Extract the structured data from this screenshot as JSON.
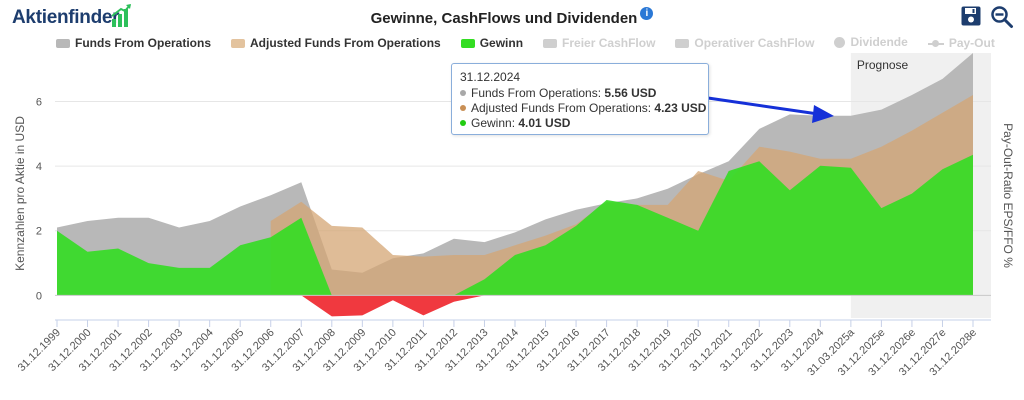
{
  "header": {
    "logo_text": "Aktienfinder",
    "title": "Gewinne, CashFlows und Dividenden",
    "info_icon": "i"
  },
  "legend": [
    {
      "label": "Funds From Operations",
      "color": "#b8b8b8",
      "shape": "rect",
      "active": true
    },
    {
      "label": "Adjusted Funds From Operations",
      "color": "#e3c39e",
      "shape": "rect",
      "active": true
    },
    {
      "label": "Gewinn",
      "color": "#33dd22",
      "shape": "rect",
      "active": true
    },
    {
      "label": "Freier CashFlow",
      "color": "#cfcfcf",
      "shape": "rect",
      "active": false
    },
    {
      "label": "Operativer CashFlow",
      "color": "#cfcfcf",
      "shape": "rect",
      "active": false
    },
    {
      "label": "Dividende",
      "color": "#cfcfcf",
      "shape": "circle",
      "active": false
    },
    {
      "label": "Pay-Out",
      "color": "#cfcfcf",
      "shape": "line-dot",
      "active": false
    }
  ],
  "tooltip": {
    "date": "31.12.2024",
    "rows": [
      {
        "label": "Funds From Operations: ",
        "value": "5.56 USD",
        "color": "#a8a8a8"
      },
      {
        "label": "Adjusted Funds From Operations: ",
        "value": "4.23 USD",
        "color": "#c98f55"
      },
      {
        "label": "Gewinn: ",
        "value": "4.01 USD",
        "color": "#22cc11"
      }
    ]
  },
  "chart_data": {
    "type": "area",
    "title": "Gewinne, CashFlows und Dividenden",
    "ylabel": "Kennzahlen pro Aktie in USD",
    "y2label": "Pay-Out-Ratio EPS/FFO %",
    "ylim": [
      -0.7,
      7.5
    ],
    "yticks": [
      0,
      2,
      4,
      6
    ],
    "grid": true,
    "legend_position": "top",
    "forecast_label": "Prognose",
    "forecast_start": "31.03.2025a",
    "categories": [
      "31.12.1999",
      "31.12.2000",
      "31.12.2001",
      "31.12.2002",
      "31.12.2003",
      "31.12.2004",
      "31.12.2005",
      "31.12.2006",
      "31.12.2007",
      "31.12.2008",
      "31.12.2009",
      "31.12.2010",
      "31.12.2011",
      "31.12.2012",
      "31.12.2013",
      "31.12.2014",
      "31.12.2015",
      "31.12.2016",
      "31.12.2017",
      "31.12.2018",
      "31.12.2019",
      "31.12.2020",
      "31.12.2021",
      "31.12.2022",
      "31.12.2023",
      "31.12.2024",
      "31.03.2025a",
      "31.12.2025e",
      "31.12.2026e",
      "31.12.2027e",
      "31.12.2028e"
    ],
    "series": [
      {
        "name": "Funds From Operations",
        "color": "#b8b8b8",
        "values": [
          2.1,
          2.3,
          2.4,
          2.4,
          2.1,
          2.3,
          2.75,
          3.1,
          3.5,
          0.8,
          0.7,
          1.15,
          1.3,
          1.75,
          1.65,
          1.95,
          2.35,
          2.65,
          2.85,
          3.0,
          3.3,
          3.75,
          4.15,
          5.15,
          5.6,
          5.56,
          5.56,
          5.75,
          6.2,
          6.7,
          7.5
        ]
      },
      {
        "name": "Adjusted Funds From Operations",
        "color": "#e3c39e",
        "values": [
          null,
          null,
          null,
          null,
          null,
          null,
          null,
          2.3,
          2.9,
          2.15,
          2.1,
          1.25,
          1.2,
          1.25,
          1.25,
          1.55,
          1.85,
          2.2,
          2.9,
          2.8,
          2.8,
          3.85,
          3.55,
          4.6,
          4.45,
          4.23,
          4.23,
          4.6,
          5.1,
          5.65,
          6.2
        ]
      },
      {
        "name": "Gewinn",
        "color": "#33dd22",
        "values": [
          2.0,
          1.35,
          1.45,
          1.0,
          0.85,
          0.85,
          1.55,
          1.8,
          2.4,
          -0.65,
          -0.62,
          -0.15,
          -0.62,
          -0.2,
          0.5,
          1.25,
          1.55,
          2.15,
          2.95,
          2.8,
          2.4,
          2.0,
          3.85,
          4.15,
          3.25,
          4.01,
          3.95,
          2.7,
          3.15,
          3.9,
          4.35
        ]
      }
    ]
  }
}
